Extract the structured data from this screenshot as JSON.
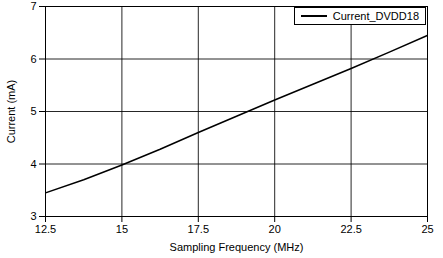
{
  "chart_data": {
    "type": "line",
    "x_label": "Sampling Frequency (MHz)",
    "y_label": "Current (mA)",
    "x": [
      12.5,
      13.75,
      15,
      16.25,
      17.5,
      18.75,
      20,
      21.25,
      22.5,
      23.75,
      25
    ],
    "series": [
      {
        "name": "Current_DVDD18",
        "color": "#000000",
        "values": [
          3.45,
          3.7,
          3.98,
          4.28,
          4.6,
          4.91,
          5.22,
          5.52,
          5.82,
          6.13,
          6.45
        ]
      }
    ],
    "xlim": [
      12.5,
      25
    ],
    "xticks": [
      12.5,
      15,
      17.5,
      20,
      22.5,
      25
    ],
    "ylim": [
      3,
      7
    ],
    "yticks": [
      3,
      4,
      5,
      6,
      7
    ],
    "grid": true,
    "legend": "top-right"
  }
}
